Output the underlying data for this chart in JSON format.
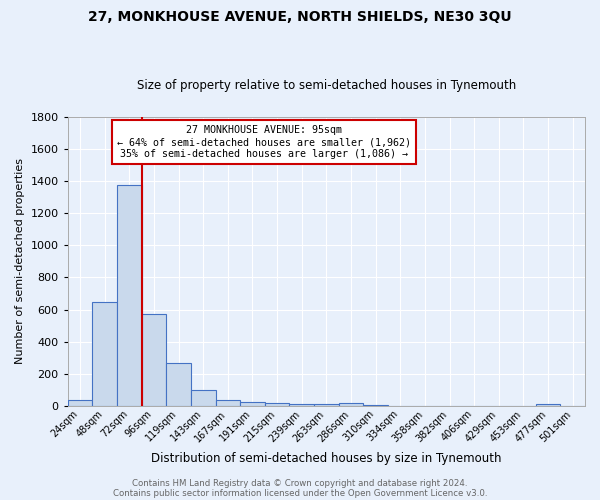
{
  "title1": "27, MONKHOUSE AVENUE, NORTH SHIELDS, NE30 3QU",
  "title2": "Size of property relative to semi-detached houses in Tynemouth",
  "xlabel": "Distribution of semi-detached houses by size in Tynemouth",
  "ylabel": "Number of semi-detached properties",
  "footer1": "Contains HM Land Registry data © Crown copyright and database right 2024.",
  "footer2": "Contains public sector information licensed under the Open Government Licence v3.0.",
  "bins": [
    "24sqm",
    "48sqm",
    "72sqm",
    "96sqm",
    "119sqm",
    "143sqm",
    "167sqm",
    "191sqm",
    "215sqm",
    "239sqm",
    "263sqm",
    "286sqm",
    "310sqm",
    "334sqm",
    "358sqm",
    "382sqm",
    "406sqm",
    "429sqm",
    "453sqm",
    "477sqm",
    "501sqm"
  ],
  "values": [
    35,
    645,
    1375,
    570,
    265,
    100,
    35,
    25,
    18,
    12,
    10,
    20,
    8,
    0,
    0,
    0,
    0,
    0,
    0,
    12,
    0
  ],
  "bar_color": "#c9d9ec",
  "bar_edge_color": "#4472c4",
  "annotation_title": "27 MONKHOUSE AVENUE: 95sqm",
  "annotation_line1": "← 64% of semi-detached houses are smaller (1,962)",
  "annotation_line2": "35% of semi-detached houses are larger (1,086) →",
  "annotation_box_color": "#ffffff",
  "annotation_box_edge": "#cc0000",
  "vline_color": "#cc0000",
  "ylim": [
    0,
    1800
  ],
  "yticks": [
    0,
    200,
    400,
    600,
    800,
    1000,
    1200,
    1400,
    1600,
    1800
  ],
  "bg_color": "#e8f0fb",
  "grid_color": "#ffffff",
  "title1_fontsize": 10,
  "title2_fontsize": 8.5,
  "ylabel_fontsize": 8,
  "xlabel_fontsize": 8.5,
  "footer_fontsize": 6.2,
  "footer_color": "#666666"
}
